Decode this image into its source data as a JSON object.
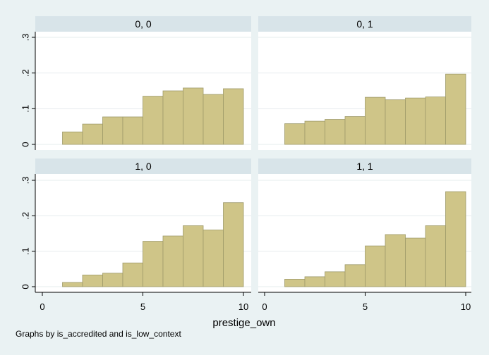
{
  "chart_data": {
    "type": "bar",
    "subtype": "histogram-by-panel",
    "xlabel": "prestige_own",
    "ylabel": "",
    "note": "Graphs by is_accredited and is_low_context",
    "xlim": [
      0,
      10
    ],
    "ylim": [
      0,
      0.3
    ],
    "x_ticks": [
      "0",
      "5",
      "10"
    ],
    "y_ticks": [
      "0",
      ".1",
      ".2",
      ".3"
    ],
    "y_tick_values": [
      0,
      0.1,
      0.2,
      0.3
    ],
    "x_tick_values": [
      0,
      5,
      10
    ],
    "bin_edges": [
      1,
      2,
      3,
      4,
      5,
      6,
      7,
      8,
      9,
      10
    ],
    "bar_color": "#cfc588",
    "bar_edge_color": "#9e9a6a",
    "strip_color": "#d8e4e9",
    "panels": [
      {
        "label": "0, 0",
        "values": [
          0.035,
          0.057,
          0.077,
          0.077,
          0.135,
          0.15,
          0.158,
          0.14,
          0.156
        ]
      },
      {
        "label": "0, 1",
        "values": [
          0.058,
          0.065,
          0.07,
          0.078,
          0.132,
          0.125,
          0.13,
          0.133,
          0.197
        ]
      },
      {
        "label": "1, 0",
        "values": [
          0.012,
          0.033,
          0.038,
          0.067,
          0.128,
          0.143,
          0.172,
          0.16,
          0.237
        ]
      },
      {
        "label": "1, 1",
        "values": [
          0.021,
          0.028,
          0.042,
          0.062,
          0.115,
          0.147,
          0.137,
          0.172,
          0.268
        ]
      }
    ]
  }
}
